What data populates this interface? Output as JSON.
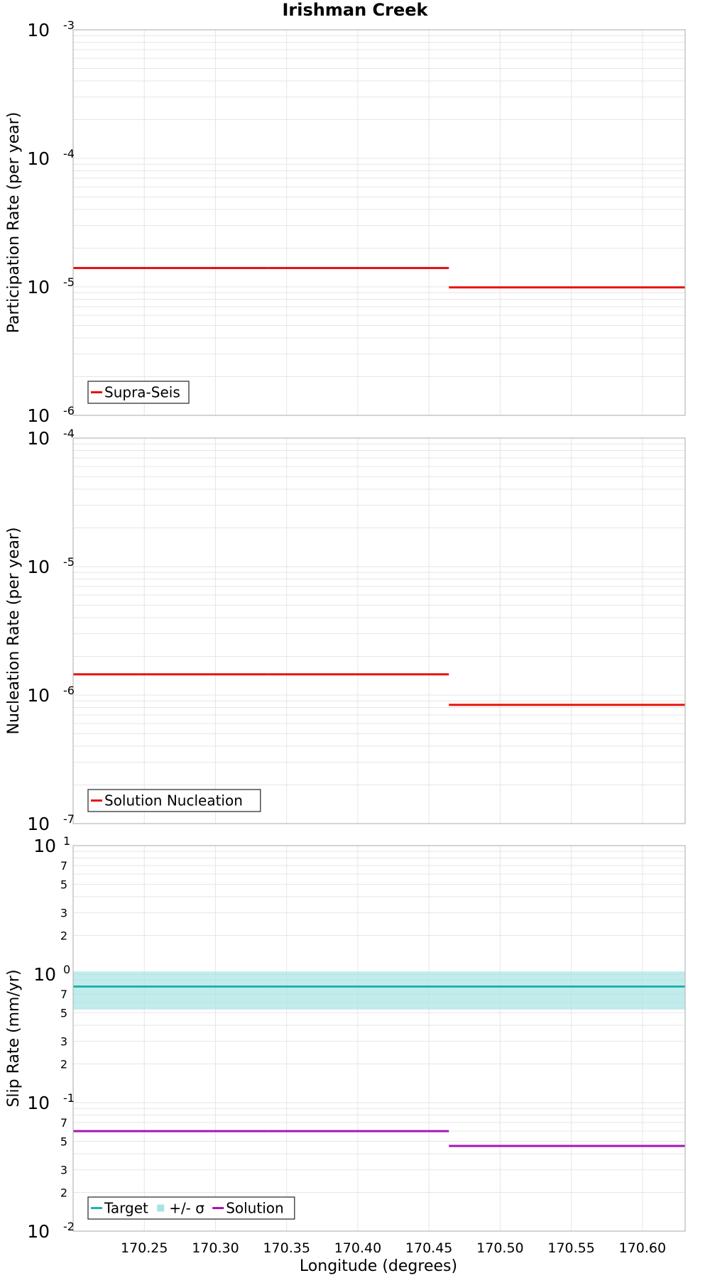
{
  "chart_data": {
    "title": "Irishman Creek",
    "xlabel": "Longitude (degrees)",
    "xlim": [
      170.2,
      170.63
    ],
    "xticks": [
      170.25,
      170.3,
      170.35,
      170.4,
      170.45,
      170.5,
      170.55,
      170.6
    ],
    "xtick_labels": [
      "170.25",
      "170.30",
      "170.35",
      "170.40",
      "170.45",
      "170.50",
      "170.55",
      "170.60"
    ],
    "panels": [
      {
        "type": "line",
        "yscale": "log",
        "ylabel": "Participation Rate (per year)",
        "ylim": [
          1e-06,
          0.001
        ],
        "yticks": [
          {
            "base": "10",
            "exp": "-3",
            "value": 0.001
          },
          {
            "base": "10",
            "exp": "-4",
            "value": 0.0001
          },
          {
            "base": "10",
            "exp": "-5",
            "value": 1e-05
          },
          {
            "base": "10",
            "exp": "-6",
            "value": 1e-06
          }
        ],
        "minor_labels": [],
        "legend_position": "bottom-left",
        "bands": [],
        "series": [
          {
            "name": "Supra-Seis",
            "color": "#e8120f",
            "segments": [
              {
                "x0": 170.2,
                "x1": 170.337,
                "y": 1.4e-05
              },
              {
                "x0": 170.337,
                "x1": 170.464,
                "y": 1.4e-05
              },
              {
                "x0": 170.464,
                "x1": 170.63,
                "y": 9.9e-06
              }
            ]
          }
        ]
      },
      {
        "type": "line",
        "yscale": "log",
        "ylabel": "Nucleation Rate (per year)",
        "ylim": [
          1e-07,
          0.0001
        ],
        "yticks": [
          {
            "base": "10",
            "exp": "-4",
            "value": 0.0001
          },
          {
            "base": "10",
            "exp": "-5",
            "value": 1e-05
          },
          {
            "base": "10",
            "exp": "-6",
            "value": 1e-06
          },
          {
            "base": "10",
            "exp": "-7",
            "value": 1e-07
          }
        ],
        "minor_labels": [],
        "legend_position": "bottom-left",
        "bands": [],
        "series": [
          {
            "name": "Solution Nucleation",
            "color": "#e8120f",
            "segments": [
              {
                "x0": 170.2,
                "x1": 170.337,
                "y": 1.45e-06
              },
              {
                "x0": 170.337,
                "x1": 170.464,
                "y": 1.45e-06
              },
              {
                "x0": 170.464,
                "x1": 170.63,
                "y": 8.4e-07
              }
            ]
          }
        ]
      },
      {
        "type": "line",
        "yscale": "log",
        "ylabel": "Slip Rate (mm/yr)",
        "ylim": [
          0.01,
          10
        ],
        "yticks": [
          {
            "base": "10",
            "exp": "1",
            "value": 10
          },
          {
            "base": "10",
            "exp": "0",
            "value": 1
          },
          {
            "base": "10",
            "exp": "-1",
            "value": 0.1
          },
          {
            "base": "10",
            "exp": "-2",
            "value": 0.01
          }
        ],
        "minor_labels": [
          {
            "label": "7",
            "value": 7
          },
          {
            "label": "5",
            "value": 5
          },
          {
            "label": "3",
            "value": 3
          },
          {
            "label": "2",
            "value": 2
          },
          {
            "label": "7",
            "value": 0.7
          },
          {
            "label": "5",
            "value": 0.5
          },
          {
            "label": "3",
            "value": 0.3
          },
          {
            "label": "2",
            "value": 0.2
          },
          {
            "label": "7",
            "value": 0.07
          },
          {
            "label": "5",
            "value": 0.05
          },
          {
            "label": "3",
            "value": 0.03
          },
          {
            "label": "2",
            "value": 0.02
          }
        ],
        "legend_position": "bottom-left",
        "bands": [
          {
            "name": "+/- σ",
            "color": "#a8e4e2",
            "x0": 170.2,
            "x1": 170.63,
            "y_low": 0.53,
            "y_high": 1.05
          }
        ],
        "series": [
          {
            "name": "Target",
            "color": "#1fb3ad",
            "segments": [
              {
                "x0": 170.2,
                "x1": 170.337,
                "y": 0.8
              },
              {
                "x0": 170.337,
                "x1": 170.464,
                "y": 0.8
              },
              {
                "x0": 170.464,
                "x1": 170.63,
                "y": 0.8
              }
            ]
          },
          {
            "name": "Solution",
            "color": "#a516b8",
            "segments": [
              {
                "x0": 170.2,
                "x1": 170.337,
                "y": 0.06
              },
              {
                "x0": 170.337,
                "x1": 170.464,
                "y": 0.06
              },
              {
                "x0": 170.464,
                "x1": 170.63,
                "y": 0.046
              }
            ]
          }
        ],
        "legend_order": [
          "Target",
          "+/- σ",
          "Solution"
        ]
      }
    ]
  }
}
